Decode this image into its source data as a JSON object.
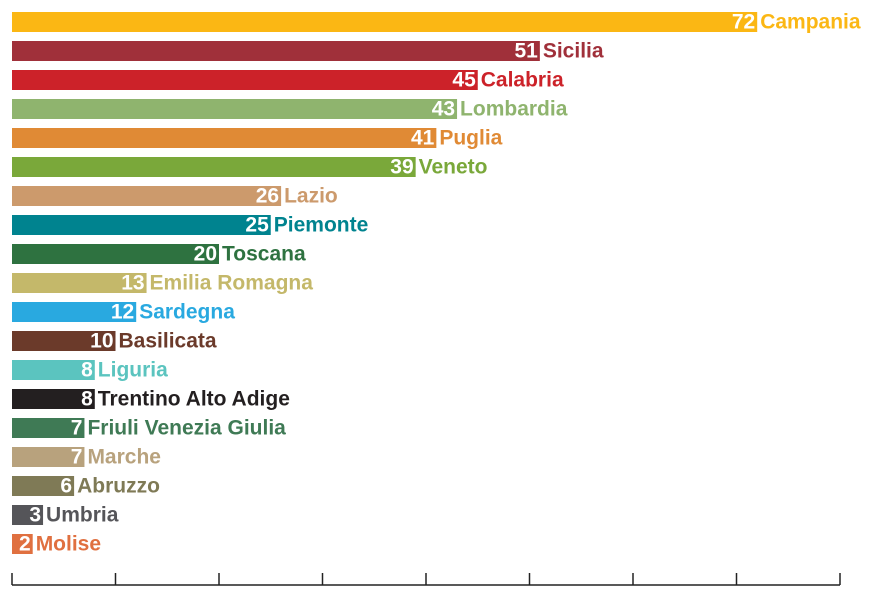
{
  "chart_data": {
    "type": "bar",
    "orientation": "horizontal",
    "categories": [
      "Campania",
      "Sicilia",
      "Calabria",
      "Lombardia",
      "Puglia",
      "Veneto",
      "Lazio",
      "Piemonte",
      "Toscana",
      "Emilia Romagna",
      "Sardegna",
      "Basilicata",
      "Liguria",
      "Trentino Alto Adige",
      "Friuli Venezia Giulia",
      "Marche",
      "Abruzzo",
      "Umbria",
      "Molise"
    ],
    "values": [
      72,
      51,
      45,
      43,
      41,
      39,
      26,
      25,
      20,
      13,
      12,
      10,
      8,
      8,
      7,
      7,
      6,
      3,
      2
    ],
    "colors": [
      "#fbb714",
      "#a0303a",
      "#cc2229",
      "#8fb46e",
      "#e08a35",
      "#7aa83a",
      "#cc9a6c",
      "#00838f",
      "#2e7240",
      "#c4b86a",
      "#29a9e0",
      "#6b3a2a",
      "#5bc4bf",
      "#231f20",
      "#3f7a55",
      "#b8a27d",
      "#7f7a56",
      "#555559",
      "#e07040"
    ],
    "xlim": [
      0,
      80
    ],
    "xticks": [
      0,
      10,
      20,
      30,
      40,
      50,
      60,
      70,
      80
    ]
  }
}
